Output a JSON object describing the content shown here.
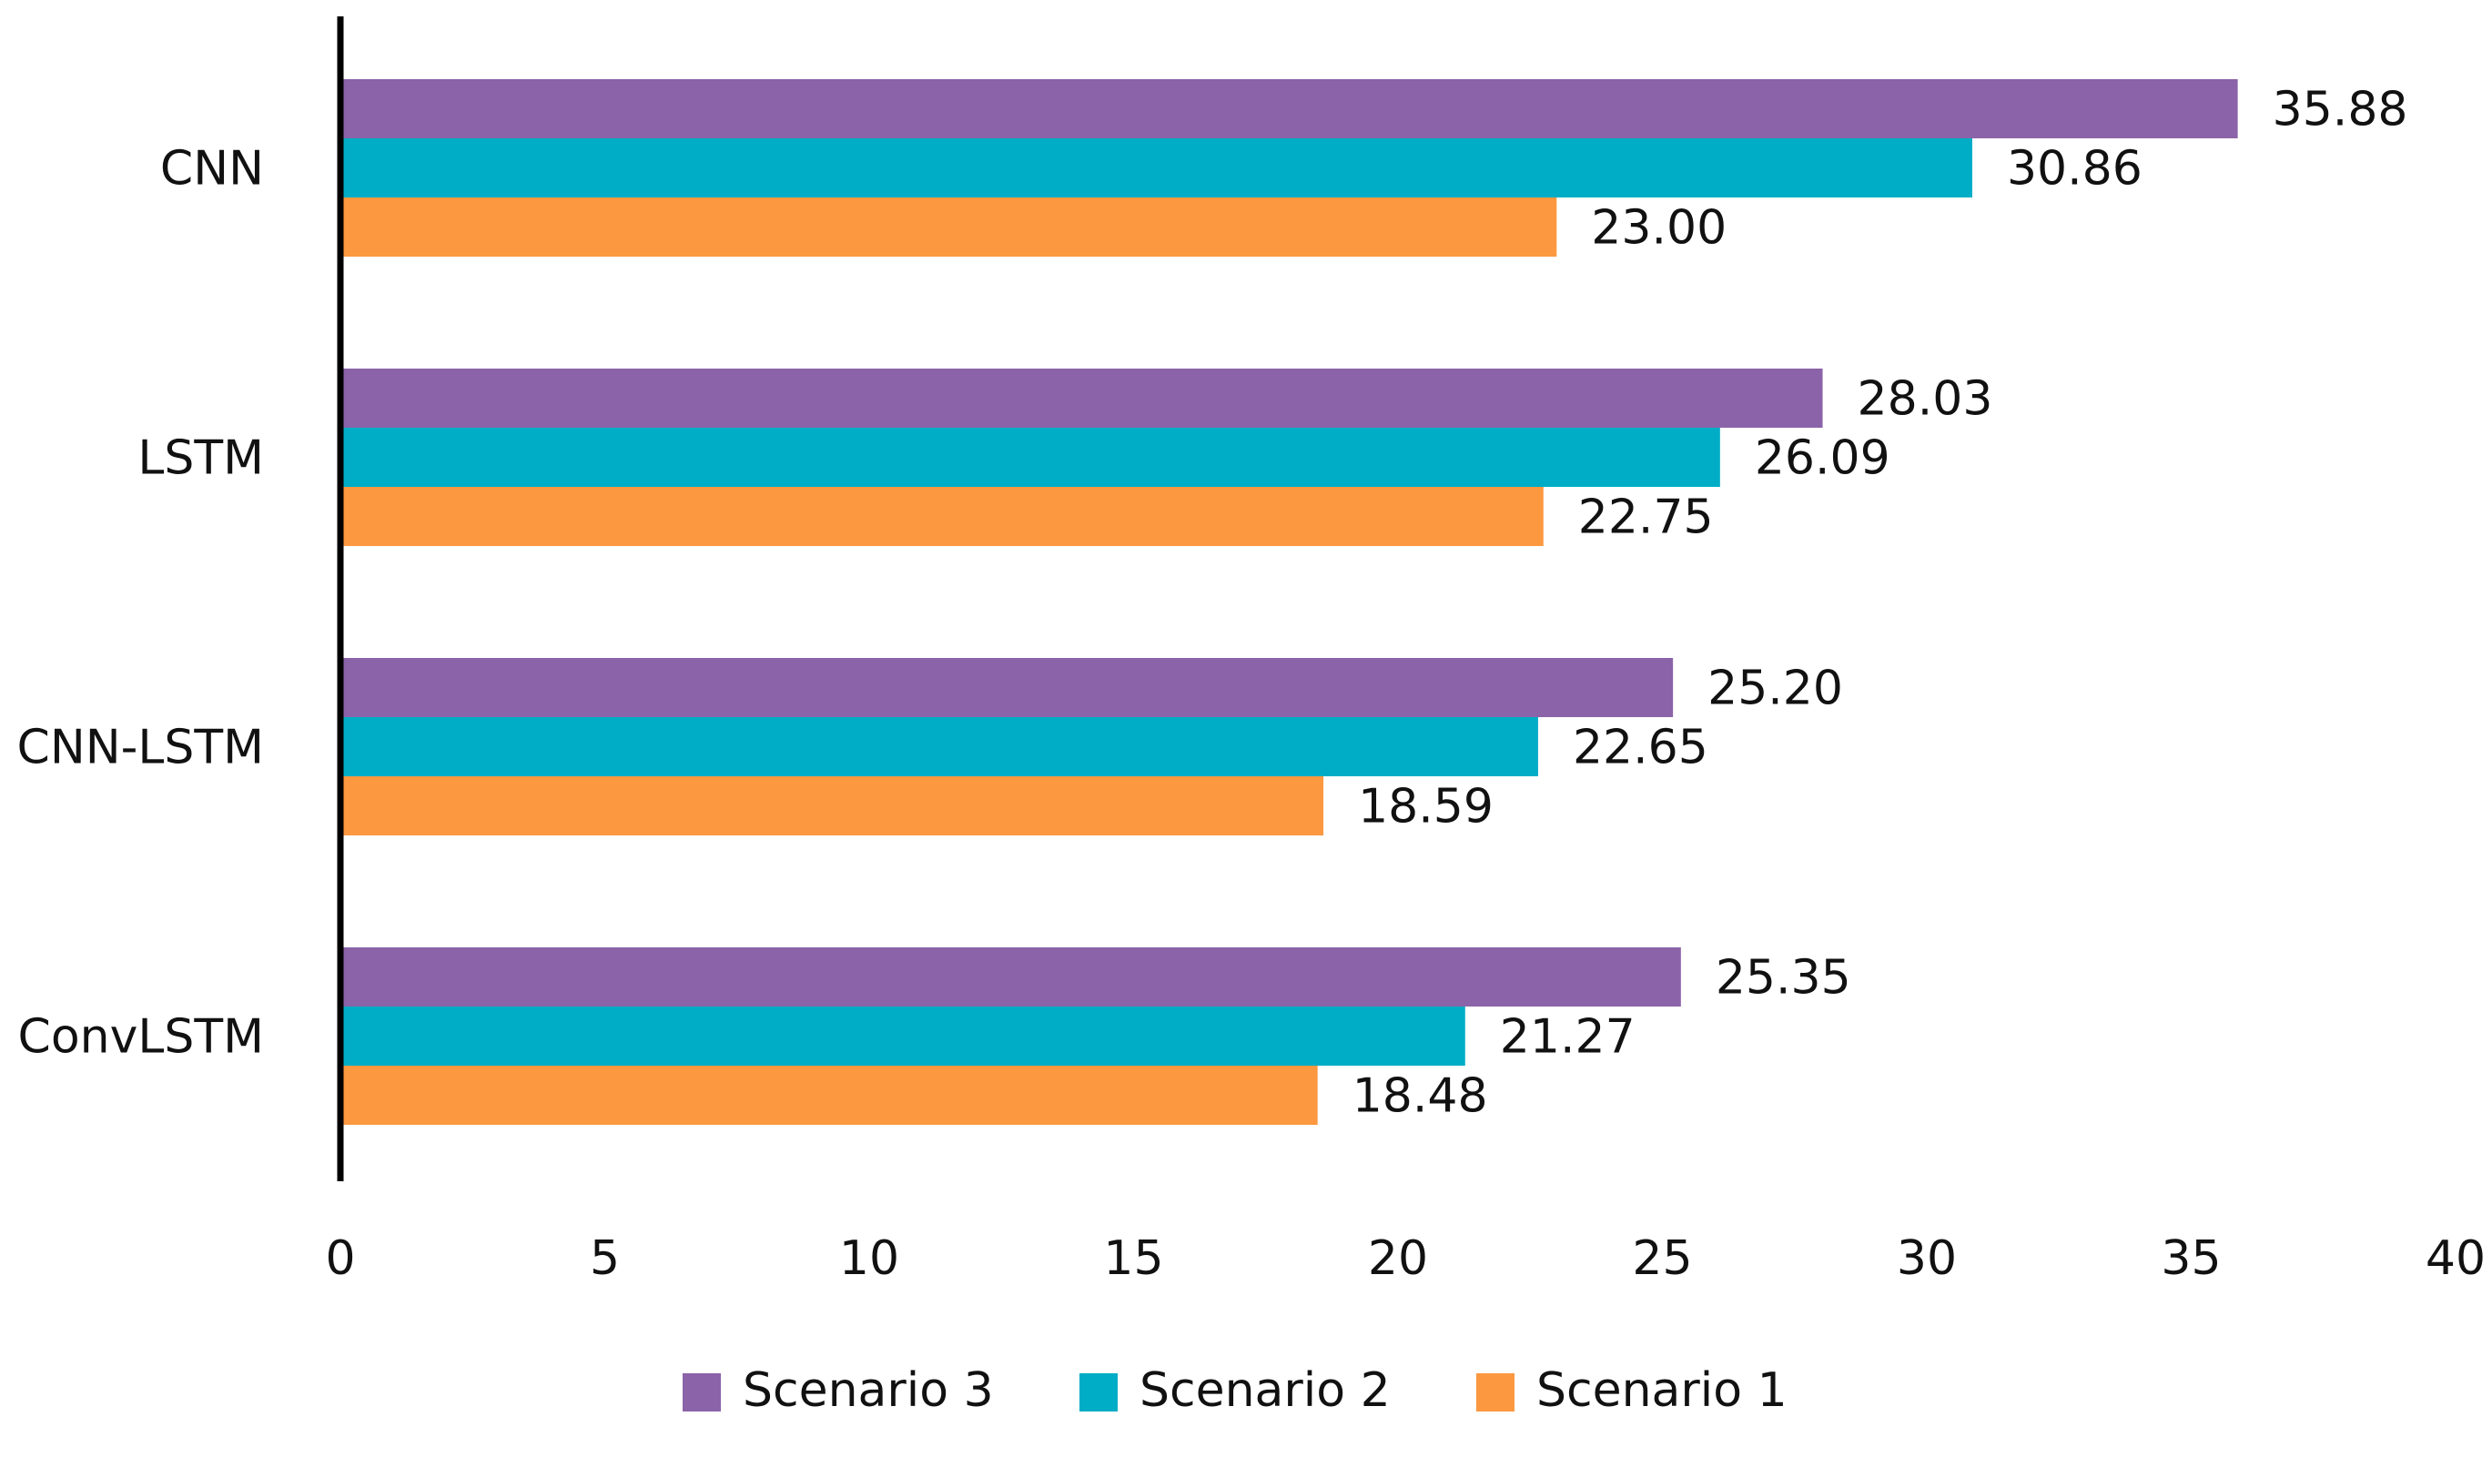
{
  "chart_data": {
    "type": "bar",
    "orientation": "horizontal",
    "categories": [
      "CNN",
      "LSTM",
      "CNN-LSTM",
      "ConvLSTM"
    ],
    "series": [
      {
        "name": "Scenario 3",
        "color": "#8B63A8",
        "values": [
          35.88,
          28.03,
          25.2,
          25.35
        ],
        "labels": [
          "35.88",
          "28.03",
          "25.20",
          "25.35"
        ]
      },
      {
        "name": "Scenario 2",
        "color": "#00ADC6",
        "values": [
          30.86,
          26.09,
          22.65,
          21.27
        ],
        "labels": [
          "30.86",
          "26.09",
          "22.65",
          "21.27"
        ]
      },
      {
        "name": "Scenario 1",
        "color": "#FB9840",
        "values": [
          23.0,
          22.75,
          18.59,
          18.48
        ],
        "labels": [
          "23.00",
          "22.75",
          "18.59",
          "18.48"
        ]
      }
    ],
    "xlim": [
      0,
      40
    ],
    "xticks": [
      "0",
      "5",
      "10",
      "15",
      "20",
      "25",
      "30",
      "35",
      "40"
    ],
    "title": "",
    "xlabel": "",
    "ylabel": "",
    "grid": false,
    "legend_position": "bottom-center"
  }
}
